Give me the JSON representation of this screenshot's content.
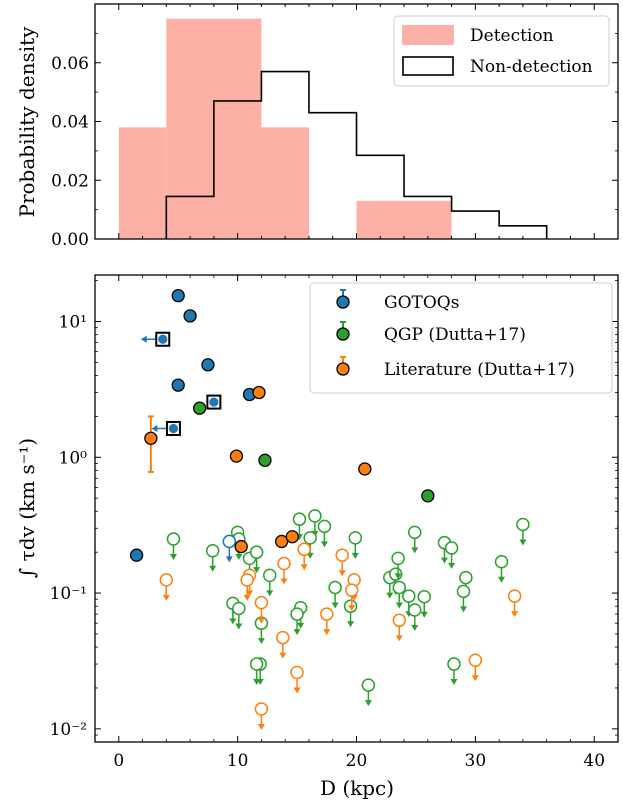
{
  "colors": {
    "detection_hist": "#fdb0a6",
    "nondetection_hist": "#000000",
    "gotoqs": "#1f77b4",
    "qgp": "#2ca02c",
    "literature": "#ff7f0e"
  },
  "chart_data": [
    {
      "type": "histogram",
      "ylabel": "Probability density",
      "xlim": [
        -2,
        42
      ],
      "ylim": [
        0,
        0.08
      ],
      "yticks": [
        0.0,
        0.02,
        0.04,
        0.06
      ],
      "ytick_labels": [
        "0.00",
        "0.02",
        "0.04",
        "0.06"
      ],
      "legend_position": "top-right",
      "series": [
        {
          "name": "Detection",
          "style": "filled",
          "bin_edges": [
            0,
            4,
            12,
            16,
            20,
            24,
            28
          ],
          "values": [
            0.038,
            0.075,
            0.038,
            0.0,
            0.013,
            0.013
          ]
        },
        {
          "name": "Non-detection",
          "style": "step",
          "bin_edges": [
            4,
            8,
            12,
            16,
            20,
            24,
            28,
            32,
            36
          ],
          "values": [
            0.0145,
            0.047,
            0.057,
            0.043,
            0.0285,
            0.0145,
            0.0095,
            0.0045
          ]
        }
      ]
    },
    {
      "type": "scatter",
      "xlabel": "D (kpc)",
      "ylabel": "∫ τdv (km s⁻¹)",
      "xlim": [
        -2,
        42
      ],
      "xticks": [
        0,
        10,
        20,
        30,
        40
      ],
      "xtick_labels": [
        "0",
        "10",
        "20",
        "30",
        "40"
      ],
      "ylim": [
        0.008,
        22
      ],
      "yscale": "log",
      "yticks": [
        0.01,
        0.1,
        1,
        10
      ],
      "ytick_labels": [
        "10⁻²",
        "10⁻¹",
        "10⁰",
        "10¹"
      ],
      "legend_position": "top-right",
      "series": [
        {
          "name": "GOTOQs",
          "detections": [
            {
              "x": 5.0,
              "y": 15.5
            },
            {
              "x": 6.0,
              "y": 11.0
            },
            {
              "x": 7.5,
              "y": 4.8
            },
            {
              "x": 5.0,
              "y": 3.4
            },
            {
              "x": 11.0,
              "y": 2.9
            },
            {
              "x": 1.5,
              "y": 0.19
            }
          ],
          "lower_limit_boxes": [
            {
              "x": 3.7,
              "y": 7.4,
              "left_arrow": true
            },
            {
              "x": 4.6,
              "y": 1.63,
              "left_arrow": true
            },
            {
              "x": 8.0,
              "y": 2.55,
              "left_arrow": false
            }
          ],
          "upper_limits": [
            {
              "x": 9.3,
              "y": 0.24
            }
          ]
        },
        {
          "name": "QGP (Dutta+17)",
          "detections": [
            {
              "x": 6.8,
              "y": 2.3
            },
            {
              "x": 12.3,
              "y": 0.95
            },
            {
              "x": 26.0,
              "y": 0.52
            }
          ],
          "upper_limits": [
            {
              "x": 4.6,
              "y": 0.25
            },
            {
              "x": 7.9,
              "y": 0.205
            },
            {
              "x": 10.0,
              "y": 0.28
            },
            {
              "x": 10.1,
              "y": 0.25
            },
            {
              "x": 11.0,
              "y": 0.18
            },
            {
              "x": 11.6,
              "y": 0.2
            },
            {
              "x": 12.7,
              "y": 0.135
            },
            {
              "x": 15.2,
              "y": 0.35
            },
            {
              "x": 16.5,
              "y": 0.37
            },
            {
              "x": 17.3,
              "y": 0.31
            },
            {
              "x": 19.9,
              "y": 0.255
            },
            {
              "x": 24.9,
              "y": 0.28
            },
            {
              "x": 27.4,
              "y": 0.235
            },
            {
              "x": 28.0,
              "y": 0.215
            },
            {
              "x": 32.2,
              "y": 0.17
            },
            {
              "x": 34.0,
              "y": 0.32
            },
            {
              "x": 9.6,
              "y": 0.084
            },
            {
              "x": 10.1,
              "y": 0.077
            },
            {
              "x": 12.0,
              "y": 0.06
            },
            {
              "x": 15.3,
              "y": 0.078
            },
            {
              "x": 15.0,
              "y": 0.07
            },
            {
              "x": 18.2,
              "y": 0.11
            },
            {
              "x": 19.5,
              "y": 0.08
            },
            {
              "x": 22.8,
              "y": 0.13
            },
            {
              "x": 23.3,
              "y": 0.138
            },
            {
              "x": 23.5,
              "y": 0.18
            },
            {
              "x": 23.6,
              "y": 0.11
            },
            {
              "x": 24.4,
              "y": 0.095
            },
            {
              "x": 24.9,
              "y": 0.075
            },
            {
              "x": 25.7,
              "y": 0.094
            },
            {
              "x": 29.2,
              "y": 0.13
            },
            {
              "x": 29.0,
              "y": 0.103
            },
            {
              "x": 11.9,
              "y": 0.03
            },
            {
              "x": 11.6,
              "y": 0.03
            },
            {
              "x": 28.2,
              "y": 0.03
            },
            {
              "x": 21.0,
              "y": 0.021
            },
            {
              "x": 16.1,
              "y": 0.255
            }
          ]
        },
        {
          "name": "Literature (Dutta+17)",
          "detections": [
            {
              "x": 11.8,
              "y": 3.0
            },
            {
              "x": 2.7,
              "y": 1.38,
              "yerr_low": 0.6,
              "yerr_high": 0.62
            },
            {
              "x": 9.9,
              "y": 1.02
            },
            {
              "x": 20.7,
              "y": 0.82
            },
            {
              "x": 10.3,
              "y": 0.22
            },
            {
              "x": 13.7,
              "y": 0.24
            },
            {
              "x": 14.6,
              "y": 0.26
            }
          ],
          "upper_limits": [
            {
              "x": 4.0,
              "y": 0.125
            },
            {
              "x": 11.0,
              "y": 0.135
            },
            {
              "x": 10.8,
              "y": 0.125
            },
            {
              "x": 13.9,
              "y": 0.165
            },
            {
              "x": 15.6,
              "y": 0.21
            },
            {
              "x": 18.8,
              "y": 0.19
            },
            {
              "x": 19.8,
              "y": 0.125
            },
            {
              "x": 19.6,
              "y": 0.105
            },
            {
              "x": 12.0,
              "y": 0.085
            },
            {
              "x": 17.5,
              "y": 0.07
            },
            {
              "x": 23.6,
              "y": 0.063
            },
            {
              "x": 33.3,
              "y": 0.095
            },
            {
              "x": 13.8,
              "y": 0.047
            },
            {
              "x": 15.0,
              "y": 0.026
            },
            {
              "x": 30.0,
              "y": 0.032
            },
            {
              "x": 12.0,
              "y": 0.014
            }
          ]
        }
      ]
    }
  ]
}
